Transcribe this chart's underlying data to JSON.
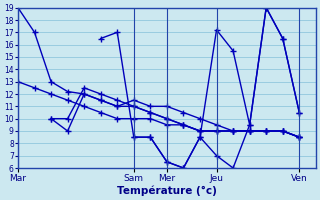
{
  "xlabel": "Température (°c)",
  "background_color": "#cce8f0",
  "grid_color": "#99cce0",
  "line_color": "#0000bb",
  "marker": "+",
  "marker_size": 5,
  "linewidth": 1.0,
  "ylim": [
    6,
    19
  ],
  "yticks": [
    6,
    7,
    8,
    9,
    10,
    11,
    12,
    13,
    14,
    15,
    16,
    17,
    18,
    19
  ],
  "xlim": [
    0,
    9
  ],
  "x_tick_positions": [
    0,
    3.5,
    4.5,
    6.0,
    8.5
  ],
  "x_tick_labels": [
    "Mar",
    "Sam",
    "Mer",
    "Jeu",
    "Ven"
  ],
  "series": [
    {
      "x": [
        0,
        0.5,
        1.0,
        1.5,
        2.0,
        2.5,
        3.0,
        3.5,
        4.0,
        4.5,
        5.0,
        5.5,
        6.0,
        6.5,
        7.0,
        7.5,
        8.0,
        8.5
      ],
      "y": [
        19,
        17,
        13,
        12.2,
        12,
        11.5,
        11,
        11.5,
        11,
        11,
        10.5,
        10,
        9.5,
        9,
        9,
        9,
        9,
        8.5
      ]
    },
    {
      "x": [
        0,
        0.5,
        1.0,
        1.5,
        2.0,
        2.5,
        3.0,
        3.5,
        4.0,
        4.5,
        5.0,
        5.5,
        6.0,
        6.5,
        7.0,
        7.5,
        8.0,
        8.5
      ],
      "y": [
        13,
        12.5,
        12,
        11.5,
        11,
        10.5,
        10,
        10,
        10,
        9.5,
        9.5,
        9,
        9,
        9,
        9,
        9,
        9,
        8.5
      ]
    },
    {
      "x": [
        1.0,
        1.5,
        2.0,
        2.5,
        3.0,
        3.5,
        4.0,
        4.5,
        5.0,
        5.5,
        6.0,
        6.5,
        7.0,
        7.5,
        8.0,
        8.5
      ],
      "y": [
        10,
        9,
        12,
        11.5,
        11,
        11,
        10.5,
        10,
        9.5,
        9,
        9,
        9,
        9,
        9,
        9,
        8.5
      ]
    },
    {
      "x": [
        1.0,
        1.5,
        2.0,
        2.5,
        3.0,
        3.5,
        4.0,
        4.5,
        5.0,
        5.5,
        6.0,
        6.5,
        7.0,
        7.5,
        8.0,
        8.5
      ],
      "y": [
        10,
        10,
        12.5,
        12,
        11.5,
        11,
        10.5,
        10,
        9.5,
        9,
        9,
        9,
        9,
        9,
        9,
        8.5
      ]
    },
    {
      "x": [
        2.5,
        3.0,
        3.5,
        4.0,
        4.5,
        5.0,
        5.5,
        6.0,
        6.5,
        7.0,
        7.5,
        8.0,
        8.5
      ],
      "y": [
        16.5,
        17,
        8.5,
        8.5,
        6.5,
        6,
        8.5,
        17.2,
        15.5,
        9.5,
        19,
        16.5,
        10.5
      ]
    },
    {
      "x": [
        3.5,
        4.0,
        4.5,
        5.0,
        5.5,
        6.0,
        6.5,
        7.0,
        7.5,
        8.0,
        8.5
      ],
      "y": [
        8.5,
        8.5,
        6.5,
        6,
        8.5,
        7,
        6,
        9.5,
        19,
        16.5,
        10.5
      ]
    }
  ]
}
